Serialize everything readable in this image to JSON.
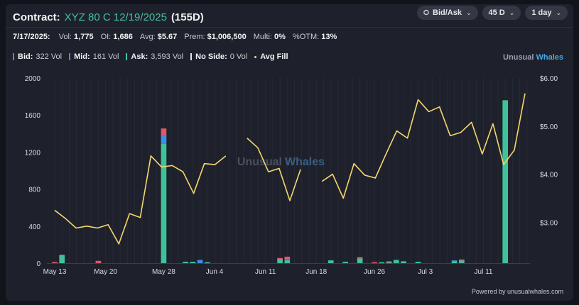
{
  "header": {
    "prefix": "Contract:",
    "contract": "XYZ 80 C 12/19/2025",
    "dte": "(155D)"
  },
  "controls": [
    {
      "label": "Bid/Ask",
      "icon": "chart-icon"
    },
    {
      "label": "45 D"
    },
    {
      "label": "1 day"
    }
  ],
  "stats": {
    "date": "7/17/2025:",
    "vol_label": "Vol:",
    "vol": "1,775",
    "oi_label": "OI:",
    "oi": "1,686",
    "avg_label": "Avg:",
    "avg": "$5.67",
    "prem_label": "Prem:",
    "prem": "$1,006,500",
    "multi_label": "Multi:",
    "multi": "0%",
    "otm_label": "%OTM:",
    "otm": "13%"
  },
  "legend": {
    "bid": {
      "label": "Bid:",
      "value": "322 Vol",
      "color": "#e0566b"
    },
    "mid": {
      "label": "Mid:",
      "value": "161 Vol",
      "color": "#3a8fe8"
    },
    "ask": {
      "label": "Ask:",
      "value": "3,593 Vol",
      "color": "#3fc29a"
    },
    "noside": {
      "label": "No Side:",
      "value": "0 Vol",
      "color": "#e6e7ea"
    },
    "avgfill": {
      "label": "Avg Fill",
      "color": "#f5d76e"
    }
  },
  "brand": {
    "a": "Unusual",
    "b": "Whales"
  },
  "watermark": {
    "a": "Unusual",
    "b": "Whales"
  },
  "footer": "Powered by unusualwhales.com",
  "chart_data": {
    "type": "bar",
    "y_left_ticks": [
      "0",
      "400",
      "800",
      "1200",
      "1600",
      "2000"
    ],
    "y_left_range": [
      0,
      2000
    ],
    "y_right_ticks": [
      "$3.00",
      "$4.00",
      "$5.00",
      "$6.00"
    ],
    "y_right_range": [
      2.15,
      6.0
    ],
    "x_tick_labels": [
      {
        "day": 0,
        "label": "May 13"
      },
      {
        "day": 7,
        "label": "May 20"
      },
      {
        "day": 15,
        "label": "May 28"
      },
      {
        "day": 22,
        "label": "Jun 4"
      },
      {
        "day": 29,
        "label": "Jun 11"
      },
      {
        "day": 36,
        "label": "Jun 18"
      },
      {
        "day": 44,
        "label": "Jun 26"
      },
      {
        "day": 51,
        "label": "Jul 3"
      },
      {
        "day": 59,
        "label": "Jul 11"
      }
    ],
    "num_days": 66,
    "bars": [
      {
        "day": 0,
        "ask": 0,
        "mid": 0,
        "bid": 12
      },
      {
        "day": 1,
        "ask": 90,
        "mid": 0,
        "bid": 0
      },
      {
        "day": 6,
        "ask": 0,
        "mid": 0,
        "bid": 25
      },
      {
        "day": 15,
        "ask": 1290,
        "mid": 85,
        "bid": 80
      },
      {
        "day": 18,
        "ask": 15,
        "mid": 0,
        "bid": 0
      },
      {
        "day": 19,
        "ask": 15,
        "mid": 0,
        "bid": 0
      },
      {
        "day": 20,
        "ask": 0,
        "mid": 35,
        "bid": 0
      },
      {
        "day": 21,
        "ask": 10,
        "mid": 0,
        "bid": 0
      },
      {
        "day": 31,
        "ask": 45,
        "mid": 0,
        "bid": 10
      },
      {
        "day": 32,
        "ask": 30,
        "mid": 15,
        "bid": 25
      },
      {
        "day": 38,
        "ask": 30,
        "mid": 0,
        "bid": 0
      },
      {
        "day": 40,
        "ask": 15,
        "mid": 0,
        "bid": 0
      },
      {
        "day": 42,
        "ask": 50,
        "mid": 0,
        "bid": 15
      },
      {
        "day": 44,
        "ask": 0,
        "mid": 0,
        "bid": 10
      },
      {
        "day": 45,
        "ask": 10,
        "mid": 0,
        "bid": 0
      },
      {
        "day": 46,
        "ask": 10,
        "mid": 0,
        "bid": 10
      },
      {
        "day": 47,
        "ask": 35,
        "mid": 0,
        "bid": 0
      },
      {
        "day": 48,
        "ask": 20,
        "mid": 0,
        "bid": 0
      },
      {
        "day": 50,
        "ask": 15,
        "mid": 0,
        "bid": 0
      },
      {
        "day": 55,
        "ask": 20,
        "mid": 10,
        "bid": 0
      },
      {
        "day": 56,
        "ask": 30,
        "mid": 0,
        "bid": 10
      },
      {
        "day": 62,
        "ask": 1760,
        "mid": 0,
        "bid": 0
      }
    ],
    "avg_fill_segments": [
      [
        [
          0,
          3.25
        ],
        [
          1,
          3.08
        ],
        [
          2,
          2.88
        ],
        [
          3,
          2.92
        ],
        [
          4,
          2.88
        ],
        [
          5,
          2.95
        ],
        [
          6,
          2.55
        ],
        [
          7,
          3.18
        ],
        [
          8,
          3.1
        ],
        [
          9,
          4.38
        ],
        [
          10,
          4.15
        ],
        [
          11,
          4.18
        ],
        [
          12,
          4.05
        ],
        [
          13,
          3.6
        ],
        [
          14,
          4.22
        ],
        [
          15,
          4.2
        ],
        [
          16,
          4.38
        ]
      ],
      [
        [
          18,
          4.75
        ],
        [
          19,
          4.55
        ],
        [
          20,
          4.05
        ],
        [
          21,
          4.12
        ],
        [
          22,
          3.45
        ],
        [
          23,
          4.1
        ]
      ],
      [
        [
          25,
          3.85
        ],
        [
          26,
          4.0
        ],
        [
          27,
          3.5
        ],
        [
          28,
          4.22
        ],
        [
          29,
          3.98
        ],
        [
          30,
          3.92
        ],
        [
          31,
          4.42
        ],
        [
          32,
          4.9
        ],
        [
          33,
          4.75
        ],
        [
          34,
          5.55
        ],
        [
          35,
          5.3
        ],
        [
          36,
          5.4
        ],
        [
          37,
          4.8
        ],
        [
          38,
          4.87
        ],
        [
          39,
          5.08
        ],
        [
          40,
          4.42
        ],
        [
          41,
          5.05
        ],
        [
          42,
          4.2
        ],
        [
          43,
          4.5
        ],
        [
          44,
          5.68
        ]
      ]
    ]
  }
}
